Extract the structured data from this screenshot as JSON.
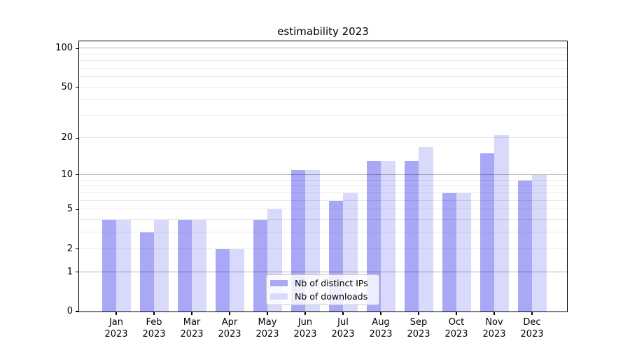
{
  "title": "estimability 2023",
  "colors": {
    "ips_bar": "#a8a8f6",
    "downloads_bar": "#d9d9fb",
    "major_grid": "#b3b3b3",
    "minor_grid": "#e9e9e9",
    "axis_frame": "#000000",
    "legend_border": "#c8c8c8",
    "text": "#000000"
  },
  "legend": {
    "items": [
      {
        "label": "Nb of distinct IPs",
        "color": "#a8a8f6"
      },
      {
        "label": "Nb of downloads",
        "color": "#d9d9fb"
      }
    ]
  },
  "y_axis": {
    "ticks": [
      {
        "value": 0,
        "label": "0"
      },
      {
        "value": 1,
        "label": "1"
      },
      {
        "value": 2,
        "label": "2"
      },
      {
        "value": 5,
        "label": "5"
      },
      {
        "value": 10,
        "label": "10"
      },
      {
        "value": 20,
        "label": "20"
      },
      {
        "value": 50,
        "label": "50"
      },
      {
        "value": 100,
        "label": "100"
      }
    ],
    "major_gridlines": [
      1,
      10,
      100
    ],
    "minor_gridlines": [
      2,
      3,
      4,
      5,
      6,
      7,
      8,
      9,
      20,
      30,
      40,
      50,
      60,
      70,
      80,
      90
    ]
  },
  "x_axis": {
    "labels": [
      {
        "month": "Jan",
        "year": "2023"
      },
      {
        "month": "Feb",
        "year": "2023"
      },
      {
        "month": "Mar",
        "year": "2023"
      },
      {
        "month": "Apr",
        "year": "2023"
      },
      {
        "month": "May",
        "year": "2023"
      },
      {
        "month": "Jun",
        "year": "2023"
      },
      {
        "month": "Jul",
        "year": "2023"
      },
      {
        "month": "Aug",
        "year": "2023"
      },
      {
        "month": "Sep",
        "year": "2023"
      },
      {
        "month": "Oct",
        "year": "2023"
      },
      {
        "month": "Nov",
        "year": "2023"
      },
      {
        "month": "Dec",
        "year": "2023"
      }
    ]
  },
  "chart_data": {
    "type": "bar",
    "title": "estimability 2023",
    "categories": [
      "Jan 2023",
      "Feb 2023",
      "Mar 2023",
      "Apr 2023",
      "May 2023",
      "Jun 2023",
      "Jul 2023",
      "Aug 2023",
      "Sep 2023",
      "Oct 2023",
      "Nov 2023",
      "Dec 2023"
    ],
    "series": [
      {
        "name": "Nb of distinct IPs",
        "color": "#a8a8f6",
        "values": [
          4,
          3,
          4,
          2,
          4,
          11,
          6,
          13,
          13,
          7,
          15,
          9
        ]
      },
      {
        "name": "Nb of downloads",
        "color": "#d9d9fb",
        "values": [
          4,
          4,
          4,
          2,
          5,
          11,
          7,
          13,
          17,
          7,
          21,
          10
        ]
      }
    ],
    "xlabel": "",
    "ylabel": "",
    "yscale": "log10(value+1)",
    "ylim": [
      0,
      112
    ],
    "y_ticks": [
      0,
      1,
      2,
      5,
      10,
      20,
      50,
      100
    ],
    "grid": true,
    "legend_position": "lower center"
  }
}
